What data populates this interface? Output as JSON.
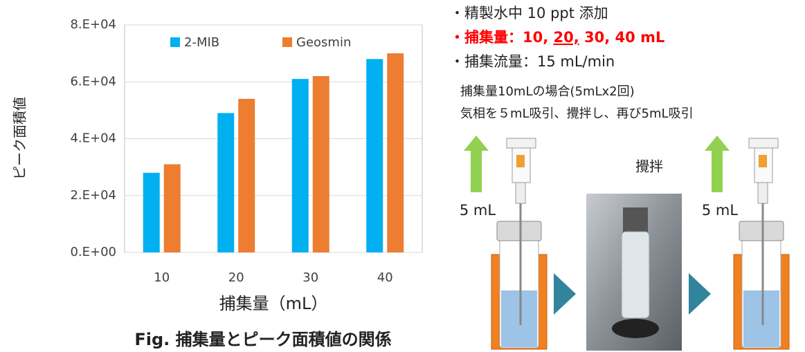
{
  "chart_data": {
    "type": "bar",
    "title": "Fig. 捕集量とピーク面積値の関係",
    "x_label": "捕集量（mL）",
    "y_label": "ピーク面積値",
    "categories": [
      "10",
      "20",
      "30",
      "40"
    ],
    "series": [
      {
        "name": "2-MIB",
        "color": "#00b0f0",
        "values": [
          28000,
          49000,
          61000,
          68000
        ]
      },
      {
        "name": "Geosmin",
        "color": "#ed7d31",
        "values": [
          31000,
          54000,
          62000,
          70000
        ]
      }
    ],
    "ylim": [
      0,
      80000
    ],
    "yticks": [
      {
        "value": 0,
        "label": "0.E+00"
      },
      {
        "value": 20000,
        "label": "2.E+04"
      },
      {
        "value": 40000,
        "label": "4.E+04"
      },
      {
        "value": 60000,
        "label": "6.E+04"
      },
      {
        "value": 80000,
        "label": "8.E+04"
      }
    ],
    "grid": true,
    "legend": "top"
  },
  "notes": {
    "line1": "・精製水中 10 ppt 添加",
    "line2": [
      "・捕集量：10, ",
      "20,",
      " 30, 40 mL"
    ],
    "line3": "・捕集流量：15 mL/min",
    "case": "捕集量10mLの場合(5mLx2回)",
    "procedure": "気相を５mL吸引、攪拌し、再び5mL吸引",
    "volume_left": "5 mL",
    "stir": "攪拌",
    "volume_right": "5 mL"
  }
}
